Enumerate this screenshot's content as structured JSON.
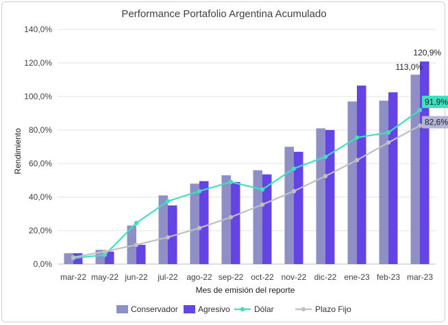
{
  "chart_data": {
    "type": "bar",
    "title": "Performance Portafolio Argentina Acumulado",
    "xlabel": "Mes de emisión del reporte",
    "ylabel": "Rendimiento",
    "categories": [
      "mar-22",
      "may-22",
      "jun-22",
      "jul-22",
      "ago-22",
      "sep-22",
      "oct-22",
      "nov-22",
      "dic-22",
      "ene-23",
      "feb-23",
      "mar-23"
    ],
    "ylim": [
      0,
      140
    ],
    "yticks": [
      "0,0%",
      "20,0%",
      "40,0%",
      "60,0%",
      "80,0%",
      "100,0%",
      "120,0%",
      "140,0%"
    ],
    "grid": true,
    "legend_position": "bottom",
    "series": [
      {
        "name": "Conservador",
        "type": "bar",
        "color": "#8e8fc6",
        "values": [
          6.5,
          8.5,
          23,
          41,
          48,
          53,
          56,
          70,
          81,
          97,
          97.5,
          113
        ]
      },
      {
        "name": "Agresivo",
        "type": "bar",
        "color": "#6544e6",
        "values": [
          6.5,
          7.5,
          11.5,
          35,
          49.5,
          49,
          53.5,
          67,
          80,
          106.5,
          102.5,
          120.9
        ]
      },
      {
        "name": "Dólar",
        "type": "line",
        "color": "#3ee0c0",
        "values": [
          3.5,
          5.5,
          24.5,
          37.5,
          43.5,
          49,
          44.5,
          57,
          64,
          75.5,
          78.5,
          91.9
        ]
      },
      {
        "name": "Plazo Fijo",
        "type": "line",
        "color": "#c0c0c0",
        "values": [
          4,
          7.5,
          11.5,
          16,
          21.5,
          28,
          35.5,
          43.5,
          52.5,
          62,
          72.5,
          82.6
        ]
      }
    ],
    "data_labels": [
      {
        "series": "Agresivo",
        "category": "mar-23",
        "text": "120,9%"
      },
      {
        "series": "Conservador",
        "category": "mar-23",
        "text": "113,0%"
      },
      {
        "series": "Dólar",
        "category": "mar-23",
        "text": "91,9%"
      },
      {
        "series": "Plazo Fijo",
        "category": "mar-23",
        "text": "82,6%"
      }
    ]
  }
}
